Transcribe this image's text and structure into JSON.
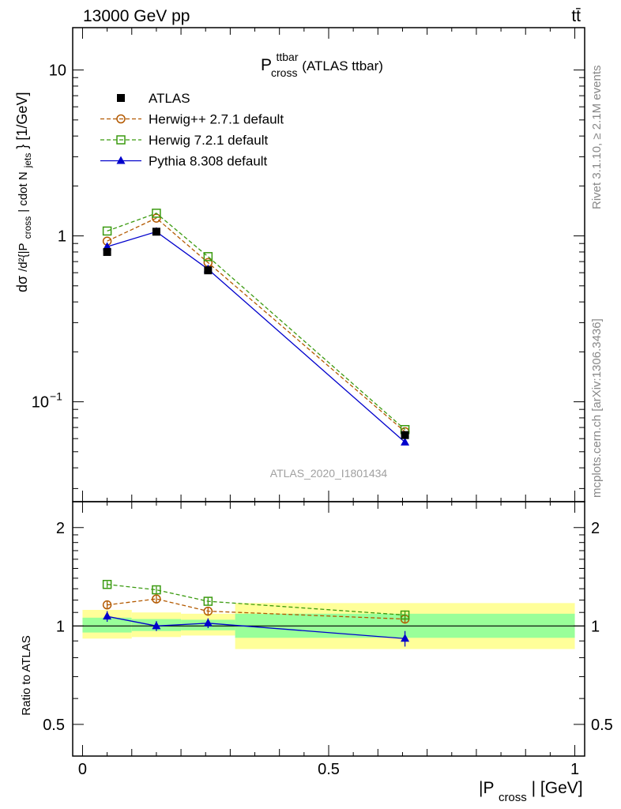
{
  "header": {
    "energy_label": "13000 GeV pp",
    "process_label": "tt̄"
  },
  "side_labels": {
    "rivet": "Rivet 3.1.10, ≥ 2.1M events",
    "mcplots": "mcplots.cern.ch [arXiv:1306.3436]"
  },
  "chart_data": [
    {
      "type": "line",
      "title_main": "P",
      "title_sup": "ttbar",
      "title_sub": "cross",
      "title_suffix": " (ATLAS ttbar)",
      "watermark": "ATLAS_2020_I1801434",
      "ylabel": "d²σ/d²{|P_cross| cdot N_jets} [1/GeV]",
      "yscale": "log",
      "ylim": [
        0.025,
        18
      ],
      "xlim": [
        -0.02,
        1.02
      ],
      "yticks": [
        {
          "value": 10,
          "label": "10"
        },
        {
          "value": 1,
          "label": "1"
        },
        {
          "value": 0.1,
          "label": "10",
          "exp": "−1"
        }
      ],
      "legend": {
        "position": "top-left"
      },
      "series": [
        {
          "name": "ATLAS",
          "color": "#000000",
          "marker": "square-filled",
          "line": "none",
          "x": [
            0.05,
            0.15,
            0.255,
            0.655
          ],
          "y": [
            0.8,
            1.06,
            0.62,
            0.063
          ]
        },
        {
          "name": "Herwig++ 2.7.1 default",
          "color": "#b35900",
          "marker": "circle-open",
          "line": "dashed",
          "x": [
            0.05,
            0.15,
            0.255,
            0.655
          ],
          "y": [
            0.93,
            1.28,
            0.69,
            0.066
          ]
        },
        {
          "name": "Herwig 7.2.1 default",
          "color": "#3a9a0f",
          "marker": "square-open",
          "line": "dashed",
          "x": [
            0.05,
            0.15,
            0.255,
            0.655
          ],
          "y": [
            1.07,
            1.37,
            0.75,
            0.068
          ]
        },
        {
          "name": "Pythia 8.308 default",
          "color": "#0000cc",
          "marker": "triangle-filled",
          "line": "solid",
          "x": [
            0.05,
            0.15,
            0.255,
            0.655
          ],
          "y": [
            0.86,
            1.06,
            0.63,
            0.057
          ]
        }
      ]
    },
    {
      "type": "line",
      "xlabel_main": "|P",
      "xlabel_sub": "cross",
      "xlabel_suffix": "| [GeV]",
      "ylabel": "Ratio to ATLAS",
      "ylim": [
        0.4,
        2.4
      ],
      "xlim": [
        -0.02,
        1.02
      ],
      "xticks": [
        {
          "value": 0,
          "label": "0"
        },
        {
          "value": 0.5,
          "label": "0.5"
        },
        {
          "value": 1,
          "label": "1"
        }
      ],
      "yticks": [
        {
          "value": 2,
          "label": "2"
        },
        {
          "value": 1,
          "label": "1"
        },
        {
          "value": 0.5,
          "label": "0.5"
        }
      ],
      "bands": [
        {
          "x0": 0.0,
          "x1": 0.1,
          "yellow": [
            0.915,
            1.12
          ],
          "green": [
            0.955,
            1.06
          ]
        },
        {
          "x0": 0.1,
          "x1": 0.2,
          "yellow": [
            0.925,
            1.1
          ],
          "green": [
            0.965,
            1.05
          ]
        },
        {
          "x0": 0.2,
          "x1": 0.31,
          "yellow": [
            0.935,
            1.09
          ],
          "green": [
            0.97,
            1.045
          ]
        },
        {
          "x0": 0.31,
          "x1": 1.0,
          "yellow": [
            0.85,
            1.175
          ],
          "green": [
            0.92,
            1.09
          ]
        }
      ],
      "series": [
        {
          "name": "Herwig++ 2.7.1 default",
          "color": "#b35900",
          "marker": "circle-open",
          "line": "dashed",
          "x": [
            0.05,
            0.15,
            0.255,
            0.655
          ],
          "y": [
            1.16,
            1.21,
            1.11,
            1.05
          ],
          "err": [
            0.03,
            0.03,
            0.03,
            0.03
          ]
        },
        {
          "name": "Herwig 7.2.1 default",
          "color": "#3a9a0f",
          "marker": "square-open",
          "line": "dashed",
          "x": [
            0.05,
            0.15,
            0.255,
            0.655
          ],
          "y": [
            1.34,
            1.29,
            1.19,
            1.08
          ],
          "err": [
            0.03,
            0.03,
            0.03,
            0.035
          ]
        },
        {
          "name": "Pythia 8.308 default",
          "color": "#0000cc",
          "marker": "triangle-filled",
          "line": "solid",
          "x": [
            0.05,
            0.15,
            0.255,
            0.655
          ],
          "y": [
            1.07,
            1.0,
            1.02,
            0.915
          ],
          "err": [
            0.04,
            0.035,
            0.035,
            0.05
          ]
        }
      ]
    }
  ]
}
